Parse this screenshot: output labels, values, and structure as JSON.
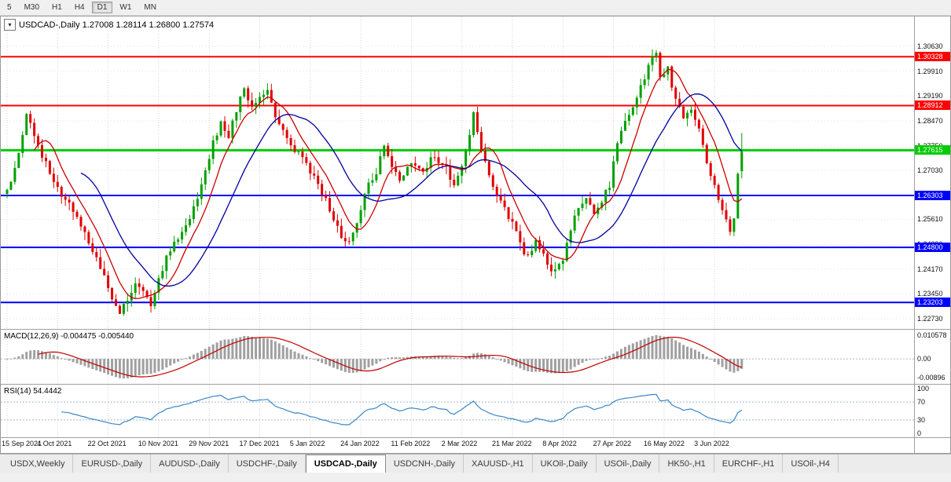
{
  "toolbar": {
    "timeframe_buttons": [
      "5",
      "M30",
      "H1",
      "H4",
      "D1",
      "W1",
      "MN"
    ],
    "active_timeframe": "D1"
  },
  "chart": {
    "title_text": "USDCAD-,Daily 1.27008 1.28114 1.26800 1.27574",
    "symbol": "USDCAD-",
    "period": "Daily",
    "open": "1.27008",
    "high": "1.28114",
    "low": "1.26800",
    "close": "1.27574"
  },
  "chart_data": {
    "type": "candlestick",
    "symbol": "USDCAD-",
    "timeframe": "Daily",
    "x_labels": [
      "15 Sep 2021",
      "4 Oct 2021",
      "22 Oct 2021",
      "10 Nov 2021",
      "29 Nov 2021",
      "17 Dec 2021",
      "5 Jan 2022",
      "24 Jan 2022",
      "11 Feb 2022",
      "2 Mar 2022",
      "21 Mar 2022",
      "8 Apr 2022",
      "27 Apr 2022",
      "16 May 2022",
      "3 Jun 2022"
    ],
    "candles_per_label": 13,
    "total_candles": 190,
    "last_candle": {
      "o": 1.27008,
      "h": 1.28114,
      "l": 1.268,
      "c": 1.27574
    },
    "close_waypoints": [
      [
        0,
        1.2655
      ],
      [
        2,
        1.27
      ],
      [
        4,
        1.281
      ],
      [
        5,
        1.2862
      ],
      [
        7,
        1.28
      ],
      [
        9,
        1.2748
      ],
      [
        11,
        1.27
      ],
      [
        13,
        1.2648
      ],
      [
        16,
        1.26
      ],
      [
        19,
        1.2545
      ],
      [
        22,
        1.247
      ],
      [
        25,
        1.2395
      ],
      [
        27,
        1.234
      ],
      [
        29,
        1.2292
      ],
      [
        31,
        1.233
      ],
      [
        33,
        1.2385
      ],
      [
        35,
        1.235
      ],
      [
        37,
        1.2305
      ],
      [
        39,
        1.2382
      ],
      [
        41,
        1.2452
      ],
      [
        44,
        1.2508
      ],
      [
        47,
        1.2562
      ],
      [
        49,
        1.2622
      ],
      [
        51,
        1.2702
      ],
      [
        53,
        1.2782
      ],
      [
        55,
        1.284
      ],
      [
        57,
        1.2805
      ],
      [
        59,
        1.2882
      ],
      [
        61,
        1.2952
      ],
      [
        63,
        1.2882
      ],
      [
        65,
        1.2905
      ],
      [
        67,
        1.2945
      ],
      [
        69,
        1.2862
      ],
      [
        72,
        1.2802
      ],
      [
        75,
        1.2748
      ],
      [
        78,
        1.2702
      ],
      [
        81,
        1.2642
      ],
      [
        84,
        1.2562
      ],
      [
        87,
        1.2488
      ],
      [
        89,
        1.2528
      ],
      [
        91,
        1.2592
      ],
      [
        93,
        1.2658
      ],
      [
        95,
        1.2702
      ],
      [
        97,
        1.2768
      ],
      [
        99,
        1.2715
      ],
      [
        101,
        1.2678
      ],
      [
        104,
        1.2732
      ],
      [
        107,
        1.2702
      ],
      [
        110,
        1.2748
      ],
      [
        113,
        1.2708
      ],
      [
        115,
        1.2662
      ],
      [
        117,
        1.2718
      ],
      [
        119,
        1.2802
      ],
      [
        120,
        1.2868
      ],
      [
        122,
        1.2762
      ],
      [
        124,
        1.2688
      ],
      [
        126,
        1.2638
      ],
      [
        128,
        1.2592
      ],
      [
        130,
        1.2548
      ],
      [
        132,
        1.2488
      ],
      [
        134,
        1.2452
      ],
      [
        136,
        1.2498
      ],
      [
        138,
        1.2465
      ],
      [
        140,
        1.241
      ],
      [
        143,
        1.2448
      ],
      [
        145,
        1.2532
      ],
      [
        147,
        1.2595
      ],
      [
        149,
        1.2628
      ],
      [
        151,
        1.2575
      ],
      [
        153,
        1.2615
      ],
      [
        155,
        1.2658
      ],
      [
        156,
        1.2735
      ],
      [
        158,
        1.2815
      ],
      [
        160,
        1.2858
      ],
      [
        162,
        1.2908
      ],
      [
        164,
        1.2972
      ],
      [
        166,
        1.3032
      ],
      [
        167,
        1.3048
      ],
      [
        168,
        1.2968
      ],
      [
        170,
        1.2995
      ],
      [
        172,
        1.2908
      ],
      [
        174,
        1.286
      ],
      [
        176,
        1.289
      ],
      [
        178,
        1.2825
      ],
      [
        180,
        1.2725
      ],
      [
        182,
        1.2658
      ],
      [
        184,
        1.2588
      ],
      [
        186,
        1.2535
      ],
      [
        187,
        1.256
      ],
      [
        188,
        1.2695
      ],
      [
        189,
        1.27574
      ]
    ],
    "y_scale": {
      "top_value": 1.3063,
      "bottom_value": 1.2273,
      "ticks": [
        "1.30630",
        "1.29910",
        "1.29190",
        "1.28470",
        "1.27750",
        "1.27030",
        "1.26310",
        "1.25610",
        "1.24890",
        "1.24170",
        "1.23450",
        "1.22730"
      ]
    },
    "h_lines": [
      {
        "price": 1.30328,
        "label": "1.30328",
        "color": "#FF0000",
        "width": 2
      },
      {
        "price": 1.28912,
        "label": "1.28912",
        "color": "#FF0000",
        "width": 2
      },
      {
        "price": 1.27615,
        "label": "1.27615",
        "color": "#00CC00",
        "width": 3
      },
      {
        "price": 1.26303,
        "label": "1.26303",
        "color": "#0000FF",
        "width": 2
      },
      {
        "price": 1.248,
        "label": "1.24800",
        "color": "#0000FF",
        "width": 2
      },
      {
        "price": 1.23203,
        "label": "1.23203",
        "color": "#0000FF",
        "width": 2
      }
    ],
    "ma": [
      {
        "period": 8,
        "color": "#CC0000"
      },
      {
        "period": 20,
        "color": "#0000A0"
      }
    ],
    "macd": {
      "label": "MACD(12,26,9) -0.004475 -0.005440",
      "fast": 12,
      "slow": 26,
      "signal_period": 9,
      "current": "-0.004475",
      "signal_current": "-0.005440",
      "ticks": [
        "0.010578",
        "0.00",
        "-0.00896"
      ]
    },
    "rsi": {
      "label": "RSI(14) 54.4442",
      "period": 14,
      "current": "54.4442",
      "levels": [
        70,
        30
      ],
      "ticks": [
        "100",
        "70",
        "30",
        "0"
      ]
    }
  },
  "tabs": {
    "items": [
      "USDX,Weekly",
      "EURUSD-,Daily",
      "AUDUSD-,Daily",
      "USDCHF-,Daily",
      "USDCAD-,Daily",
      "USDCNH-,Daily",
      "XAUUSD-,H1",
      "UKOil-,Daily",
      "USOil-,Daily",
      "HK50-,H1",
      "EURCHF-,H1",
      "USOil-,H4"
    ],
    "active": "USDCAD-,Daily"
  },
  "colors": {
    "up_candle": "#00A000",
    "down_candle": "#E00000",
    "macd_hist": "#A0A0A0",
    "macd_signal": "#C00000",
    "rsi_line": "#3A87C8",
    "grid": "#D4D4D4",
    "grid_h": "#E2E2E2"
  }
}
